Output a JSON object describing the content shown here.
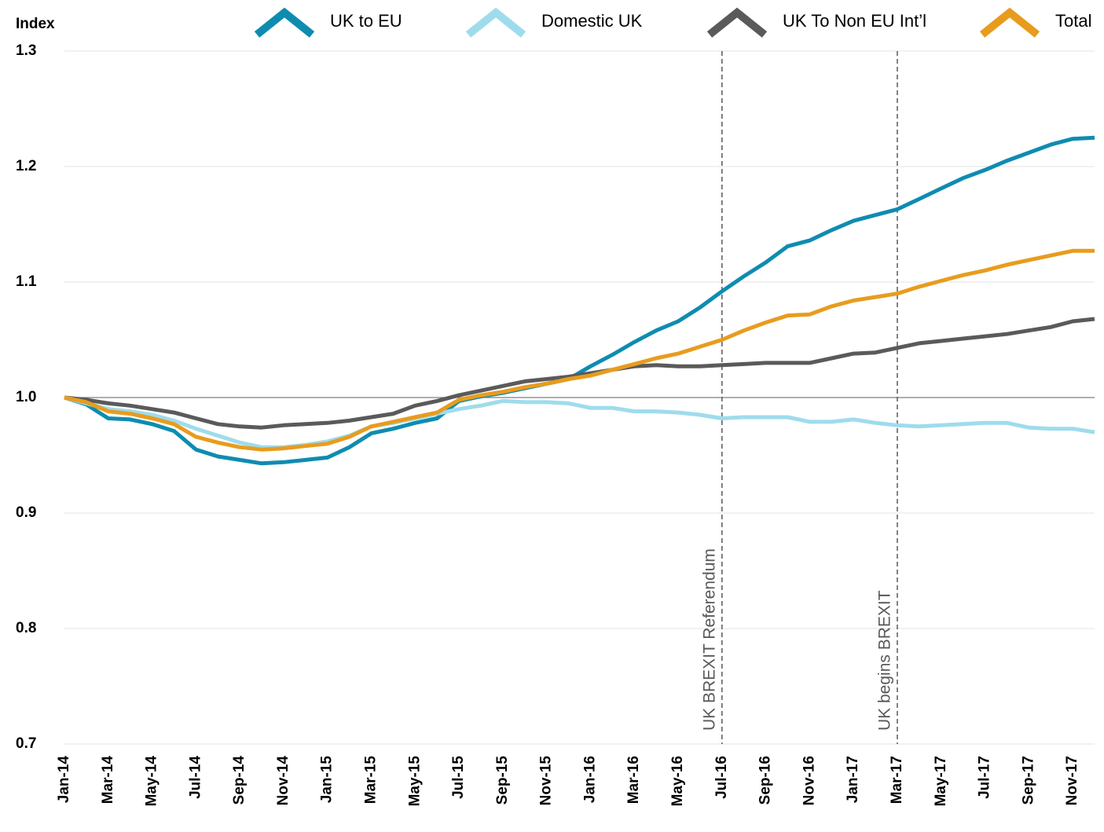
{
  "chart_data": {
    "type": "line",
    "y_label": "Index",
    "categories": [
      "Jan-14",
      null,
      "Mar-14",
      null,
      "May-14",
      null,
      "Jul-14",
      null,
      "Sep-14",
      null,
      "Nov-14",
      null,
      "Jan-15",
      null,
      "Mar-15",
      null,
      "May-15",
      null,
      "Jul-15",
      null,
      "Sep-15",
      null,
      "Nov-15",
      null,
      "Jan-16",
      null,
      "Mar-16",
      null,
      "May-16",
      null,
      "Jul-16",
      null,
      "Sep-16",
      null,
      "Nov-16",
      null,
      "Jan-17",
      null,
      "Mar-17",
      null,
      "May-17",
      null,
      "Jul-17",
      null,
      "Sep-17",
      null,
      "Nov-17",
      null
    ],
    "series": [
      {
        "name": "UK to EU",
        "color": "#0e8cb0",
        "values": [
          1.0,
          0.994,
          0.982,
          0.981,
          0.977,
          0.971,
          0.955,
          0.949,
          0.946,
          0.943,
          0.944,
          0.946,
          0.948,
          0.957,
          0.969,
          0.973,
          0.978,
          0.982,
          0.997,
          1.001,
          1.004,
          1.008,
          1.012,
          1.016,
          1.027,
          1.037,
          1.048,
          1.058,
          1.066,
          1.078,
          1.092,
          1.105,
          1.117,
          1.131,
          1.136,
          1.145,
          1.153,
          1.158,
          1.163,
          1.172,
          1.181,
          1.19,
          1.197,
          1.205,
          1.212,
          1.219,
          1.224,
          1.225
        ]
      },
      {
        "name": "Domestic UK",
        "color": "#9edcec",
        "values": [
          1.0,
          0.995,
          0.99,
          0.988,
          0.985,
          0.98,
          0.973,
          0.967,
          0.961,
          0.957,
          0.957,
          0.959,
          0.962,
          0.967,
          0.975,
          0.978,
          0.982,
          0.986,
          0.99,
          0.993,
          0.997,
          0.996,
          0.996,
          0.995,
          0.991,
          0.991,
          0.988,
          0.988,
          0.987,
          0.985,
          0.982,
          0.983,
          0.983,
          0.983,
          0.979,
          0.979,
          0.981,
          0.978,
          0.976,
          0.975,
          0.976,
          0.977,
          0.978,
          0.978,
          0.974,
          0.973,
          0.973,
          0.97
        ]
      },
      {
        "name": "UK To Non EU Int’l",
        "color": "#5a5a5a",
        "values": [
          1.0,
          0.998,
          0.995,
          0.993,
          0.99,
          0.987,
          0.982,
          0.977,
          0.975,
          0.974,
          0.976,
          0.977,
          0.978,
          0.98,
          0.983,
          0.986,
          0.993,
          0.997,
          1.002,
          1.006,
          1.01,
          1.014,
          1.016,
          1.018,
          1.021,
          1.024,
          1.027,
          1.028,
          1.027,
          1.027,
          1.028,
          1.029,
          1.03,
          1.03,
          1.03,
          1.034,
          1.038,
          1.039,
          1.043,
          1.047,
          1.049,
          1.051,
          1.053,
          1.055,
          1.058,
          1.061,
          1.066,
          1.068
        ]
      },
      {
        "name": "Total",
        "color": "#e89c1e",
        "values": [
          1.0,
          0.996,
          0.988,
          0.986,
          0.982,
          0.977,
          0.966,
          0.961,
          0.957,
          0.955,
          0.956,
          0.958,
          0.96,
          0.966,
          0.975,
          0.979,
          0.983,
          0.987,
          0.998,
          1.002,
          1.005,
          1.009,
          1.012,
          1.016,
          1.019,
          1.024,
          1.029,
          1.034,
          1.038,
          1.044,
          1.05,
          1.058,
          1.065,
          1.071,
          1.072,
          1.079,
          1.084,
          1.087,
          1.09,
          1.096,
          1.101,
          1.106,
          1.11,
          1.115,
          1.119,
          1.123,
          1.127,
          1.127
        ]
      }
    ],
    "ylim": [
      0.7,
      1.3
    ],
    "yticks": [
      0.7,
      0.8,
      0.9,
      {
        "value": 1,
        "label": "1.0"
      },
      1.1,
      1.2,
      1.3
    ],
    "reference_line": 1,
    "grid": true,
    "legend": "top",
    "annotations": [
      {
        "text": "UK BREXIT Referendum",
        "x": "Jul-16"
      },
      {
        "text": "UK begins BREXIT",
        "x": "Mar-17"
      }
    ]
  }
}
